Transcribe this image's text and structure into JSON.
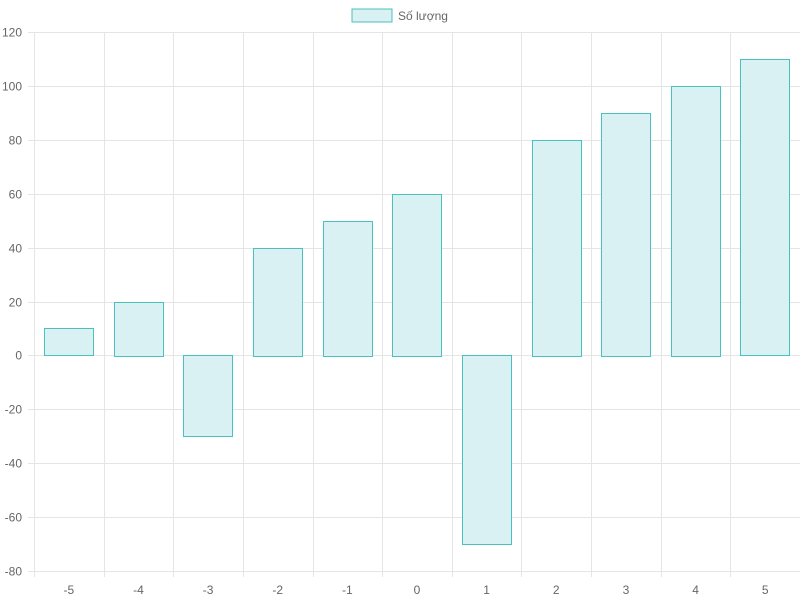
{
  "chart_data": {
    "type": "bar",
    "categories": [
      "-5",
      "-4",
      "-3",
      "-2",
      "-1",
      "0",
      "1",
      "2",
      "3",
      "4",
      "5"
    ],
    "series": [
      {
        "name": "Số lượng",
        "values": [
          10,
          20,
          -30,
          40,
          50,
          60,
          -70,
          80,
          90,
          100,
          110
        ]
      }
    ],
    "y_ticks": [
      "120",
      "100",
      "80",
      "60",
      "40",
      "20",
      "0",
      "-20",
      "-40",
      "-60",
      "-80"
    ],
    "ylim": [
      -80,
      120
    ],
    "grid": true,
    "legend_position": "top-center",
    "colors": {
      "bar_fill": "#d9f1f2",
      "bar_border": "#4bc0c0",
      "grid": "#e5e5e5",
      "axis_text": "#666666"
    }
  }
}
